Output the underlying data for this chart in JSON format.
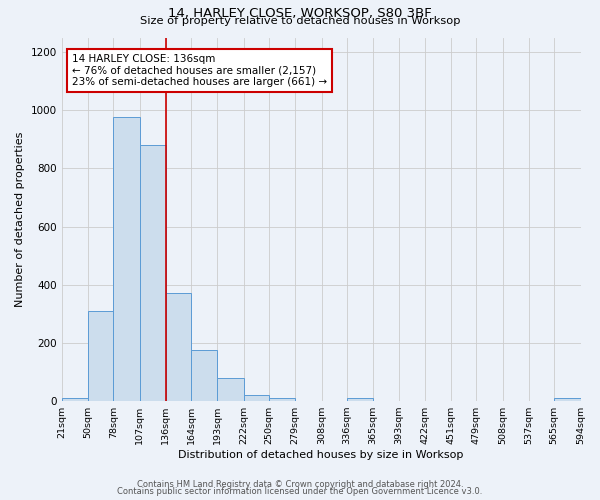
{
  "title": "14, HARLEY CLOSE, WORKSOP, S80 3BF",
  "subtitle": "Size of property relative to detached houses in Worksop",
  "xlabel": "Distribution of detached houses by size in Worksop",
  "ylabel": "Number of detached properties",
  "bin_edges": [
    21,
    50,
    78,
    107,
    136,
    164,
    193,
    222,
    250,
    279,
    308,
    336,
    365,
    393,
    422,
    451,
    479,
    508,
    537,
    565,
    594
  ],
  "bar_heights": [
    10,
    310,
    975,
    880,
    370,
    175,
    80,
    20,
    10,
    0,
    0,
    10,
    0,
    0,
    0,
    0,
    0,
    0,
    0,
    10
  ],
  "bar_color": "#ccdded",
  "bar_edge_color": "#5b9bd5",
  "vline_x": 136,
  "vline_color": "#cc0000",
  "annotation_title": "14 HARLEY CLOSE: 136sqm",
  "annotation_line1": "← 76% of detached houses are smaller (2,157)",
  "annotation_line2": "23% of semi-detached houses are larger (661) →",
  "annotation_box_edge_color": "#cc0000",
  "annotation_box_face_color": "#ffffff",
  "ylim": [
    0,
    1250
  ],
  "yticks": [
    0,
    200,
    400,
    600,
    800,
    1000,
    1200
  ],
  "grid_color": "#cccccc",
  "background_color": "#edf2f9",
  "footer_line1": "Contains HM Land Registry data © Crown copyright and database right 2024.",
  "footer_line2": "Contains public sector information licensed under the Open Government Licence v3.0."
}
